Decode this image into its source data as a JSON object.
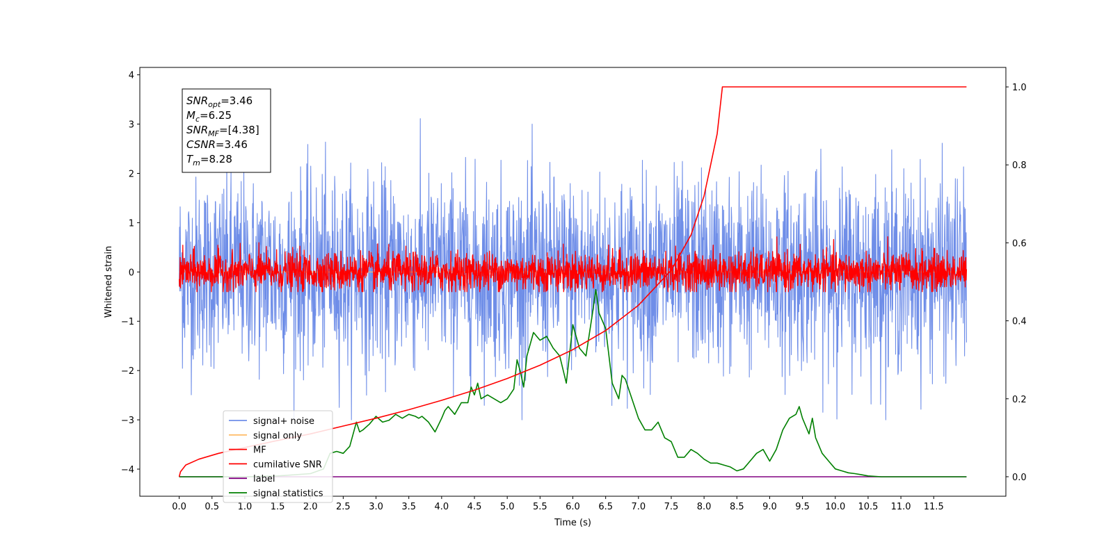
{
  "chart_data": {
    "type": "line",
    "title": "",
    "xlabel": "Time (s)",
    "ylabel": "Whitened strain",
    "y2label": "",
    "xlim": [
      -0.6,
      12.6
    ],
    "ylim": [
      -4.55,
      4.15
    ],
    "y2lim": [
      -0.05,
      1.05
    ],
    "xticks": [
      "0.0",
      "0.5",
      "1.0",
      "1.5",
      "2.0",
      "2.5",
      "3.0",
      "3.5",
      "4.0",
      "4.5",
      "5.0",
      "5.5",
      "6.0",
      "6.5",
      "7.0",
      "7.5",
      "8.0",
      "8.5",
      "9.0",
      "9.5",
      "10.0",
      "10.5",
      "11.0",
      "11.5"
    ],
    "yticks": [
      "4",
      "3",
      "2",
      "1",
      "0",
      "−1",
      "−2",
      "−3",
      "−4"
    ],
    "y2ticks": [
      "1.0",
      "0.8",
      "0.6",
      "0.4",
      "0.2",
      "0.0"
    ],
    "colors": {
      "signal_noise": "#6f8ee8",
      "signal_only": "#ffbe6b",
      "mf": "#ff0000",
      "cumulative_snr": "#ff0000",
      "label": "#800080",
      "signal_statistics": "#008000"
    },
    "series": [
      {
        "key": "signal_noise",
        "name": "signal+ noise",
        "axis": "left",
        "t_range": [
          0,
          12
        ],
        "samples": 2400,
        "envelope": {
          "typical": [
            -1.5,
            1.8
          ],
          "extremes": [
            -3.0,
            3.75
          ]
        }
      },
      {
        "key": "signal_only",
        "name": "signal only",
        "axis": "left",
        "x": [
          0,
          12
        ],
        "y": [
          0,
          0
        ]
      },
      {
        "key": "mf",
        "name": "MF",
        "axis": "left",
        "t_range": [
          0,
          12
        ],
        "samples": 2400,
        "envelope": {
          "typical": [
            -0.35,
            0.45
          ],
          "extremes": [
            -0.4,
            0.95
          ]
        }
      },
      {
        "key": "cumulative_snr",
        "name": "cumilative SNR",
        "axis": "right",
        "x": [
          0,
          0.02,
          0.1,
          0.3,
          0.6,
          1.0,
          1.5,
          2.0,
          2.5,
          3.0,
          3.5,
          4.0,
          4.5,
          5.0,
          5.5,
          6.0,
          6.5,
          7.0,
          7.5,
          7.8,
          8.0,
          8.1,
          8.2,
          8.28,
          9.0,
          10.0,
          11.0,
          12.0
        ],
        "y": [
          0.0,
          0.013,
          0.03,
          0.045,
          0.06,
          0.075,
          0.093,
          0.11,
          0.13,
          0.15,
          0.172,
          0.196,
          0.222,
          0.252,
          0.286,
          0.326,
          0.375,
          0.44,
          0.53,
          0.62,
          0.72,
          0.8,
          0.88,
          1.0,
          1.0,
          1.0,
          1.0,
          1.0
        ]
      },
      {
        "key": "label",
        "name": "label",
        "axis": "right",
        "x": [
          0,
          12
        ],
        "y": [
          0,
          0
        ]
      },
      {
        "key": "signal_statistics",
        "name": "signal statistics",
        "axis": "right",
        "x": [
          0,
          0.5,
          1.0,
          1.5,
          2.0,
          2.2,
          2.3,
          2.4,
          2.5,
          2.6,
          2.7,
          2.75,
          2.8,
          2.9,
          3.0,
          3.1,
          3.2,
          3.3,
          3.4,
          3.5,
          3.6,
          3.65,
          3.7,
          3.8,
          3.9,
          4.0,
          4.05,
          4.1,
          4.2,
          4.3,
          4.4,
          4.45,
          4.5,
          4.55,
          4.6,
          4.7,
          4.8,
          4.9,
          5.0,
          5.1,
          5.15,
          5.2,
          5.25,
          5.3,
          5.4,
          5.5,
          5.6,
          5.7,
          5.8,
          5.9,
          6.0,
          6.05,
          6.1,
          6.2,
          6.3,
          6.35,
          6.4,
          6.5,
          6.6,
          6.7,
          6.75,
          6.8,
          6.9,
          7.0,
          7.1,
          7.2,
          7.3,
          7.4,
          7.5,
          7.6,
          7.7,
          7.8,
          7.9,
          8.0,
          8.1,
          8.2,
          8.3,
          8.4,
          8.5,
          8.6,
          8.7,
          8.8,
          8.9,
          9.0,
          9.1,
          9.2,
          9.3,
          9.4,
          9.45,
          9.5,
          9.6,
          9.65,
          9.7,
          9.8,
          9.9,
          10.0,
          10.1,
          10.2,
          10.3,
          10.4,
          10.5,
          10.7,
          11.0,
          11.5,
          12.0
        ],
        "y": [
          0.0,
          0.0,
          0.0,
          0.002,
          0.008,
          0.02,
          0.06,
          0.065,
          0.06,
          0.078,
          0.14,
          0.115,
          0.12,
          0.135,
          0.155,
          0.14,
          0.145,
          0.16,
          0.15,
          0.16,
          0.155,
          0.15,
          0.155,
          0.14,
          0.115,
          0.15,
          0.17,
          0.18,
          0.16,
          0.19,
          0.19,
          0.23,
          0.21,
          0.24,
          0.2,
          0.21,
          0.2,
          0.19,
          0.2,
          0.225,
          0.3,
          0.27,
          0.23,
          0.31,
          0.37,
          0.35,
          0.36,
          0.33,
          0.31,
          0.24,
          0.39,
          0.36,
          0.33,
          0.31,
          0.42,
          0.48,
          0.42,
          0.38,
          0.24,
          0.2,
          0.26,
          0.25,
          0.2,
          0.15,
          0.12,
          0.12,
          0.14,
          0.1,
          0.09,
          0.05,
          0.05,
          0.07,
          0.06,
          0.045,
          0.035,
          0.035,
          0.03,
          0.025,
          0.015,
          0.02,
          0.04,
          0.06,
          0.07,
          0.04,
          0.07,
          0.12,
          0.15,
          0.16,
          0.18,
          0.15,
          0.11,
          0.15,
          0.1,
          0.06,
          0.04,
          0.02,
          0.015,
          0.01,
          0.008,
          0.005,
          0.002,
          0.0,
          0.0,
          0.0,
          0.0
        ]
      }
    ],
    "legend": {
      "placement": "lower-left",
      "entries": [
        "signal+ noise",
        "signal only",
        "MF",
        "cumilative SNR",
        "label",
        "signal statistics"
      ]
    },
    "annotation": {
      "lines": [
        {
          "base": "SNR",
          "sub": "opt",
          "rest": "=3.46"
        },
        {
          "base": "M",
          "sub": "c",
          "rest": "=6.25"
        },
        {
          "base": "SNR",
          "sub": "MF",
          "rest": "=[4.38]"
        },
        {
          "base": "CSNR",
          "sub": "",
          "rest": "=3.46"
        },
        {
          "base": "T",
          "sub": "m",
          "rest": "=8.28"
        }
      ]
    }
  }
}
